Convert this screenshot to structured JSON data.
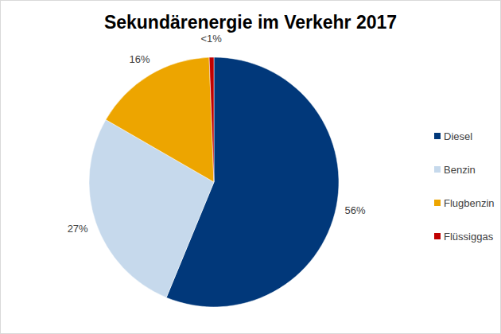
{
  "chart_data": {
    "type": "pie",
    "title": "Sekundärenergie im Verkehr 2017",
    "categories": [
      "Diesel",
      "Benzin",
      "Flugbenzin",
      "Flüssiggas"
    ],
    "values": [
      56,
      27,
      16,
      0.6
    ],
    "value_labels": [
      "56%",
      "27%",
      "16%",
      "<1%"
    ],
    "colors": [
      "#01387a",
      "#c6d9ec",
      "#eda500",
      "#c00000"
    ],
    "data_labels": true,
    "legend": "right"
  }
}
